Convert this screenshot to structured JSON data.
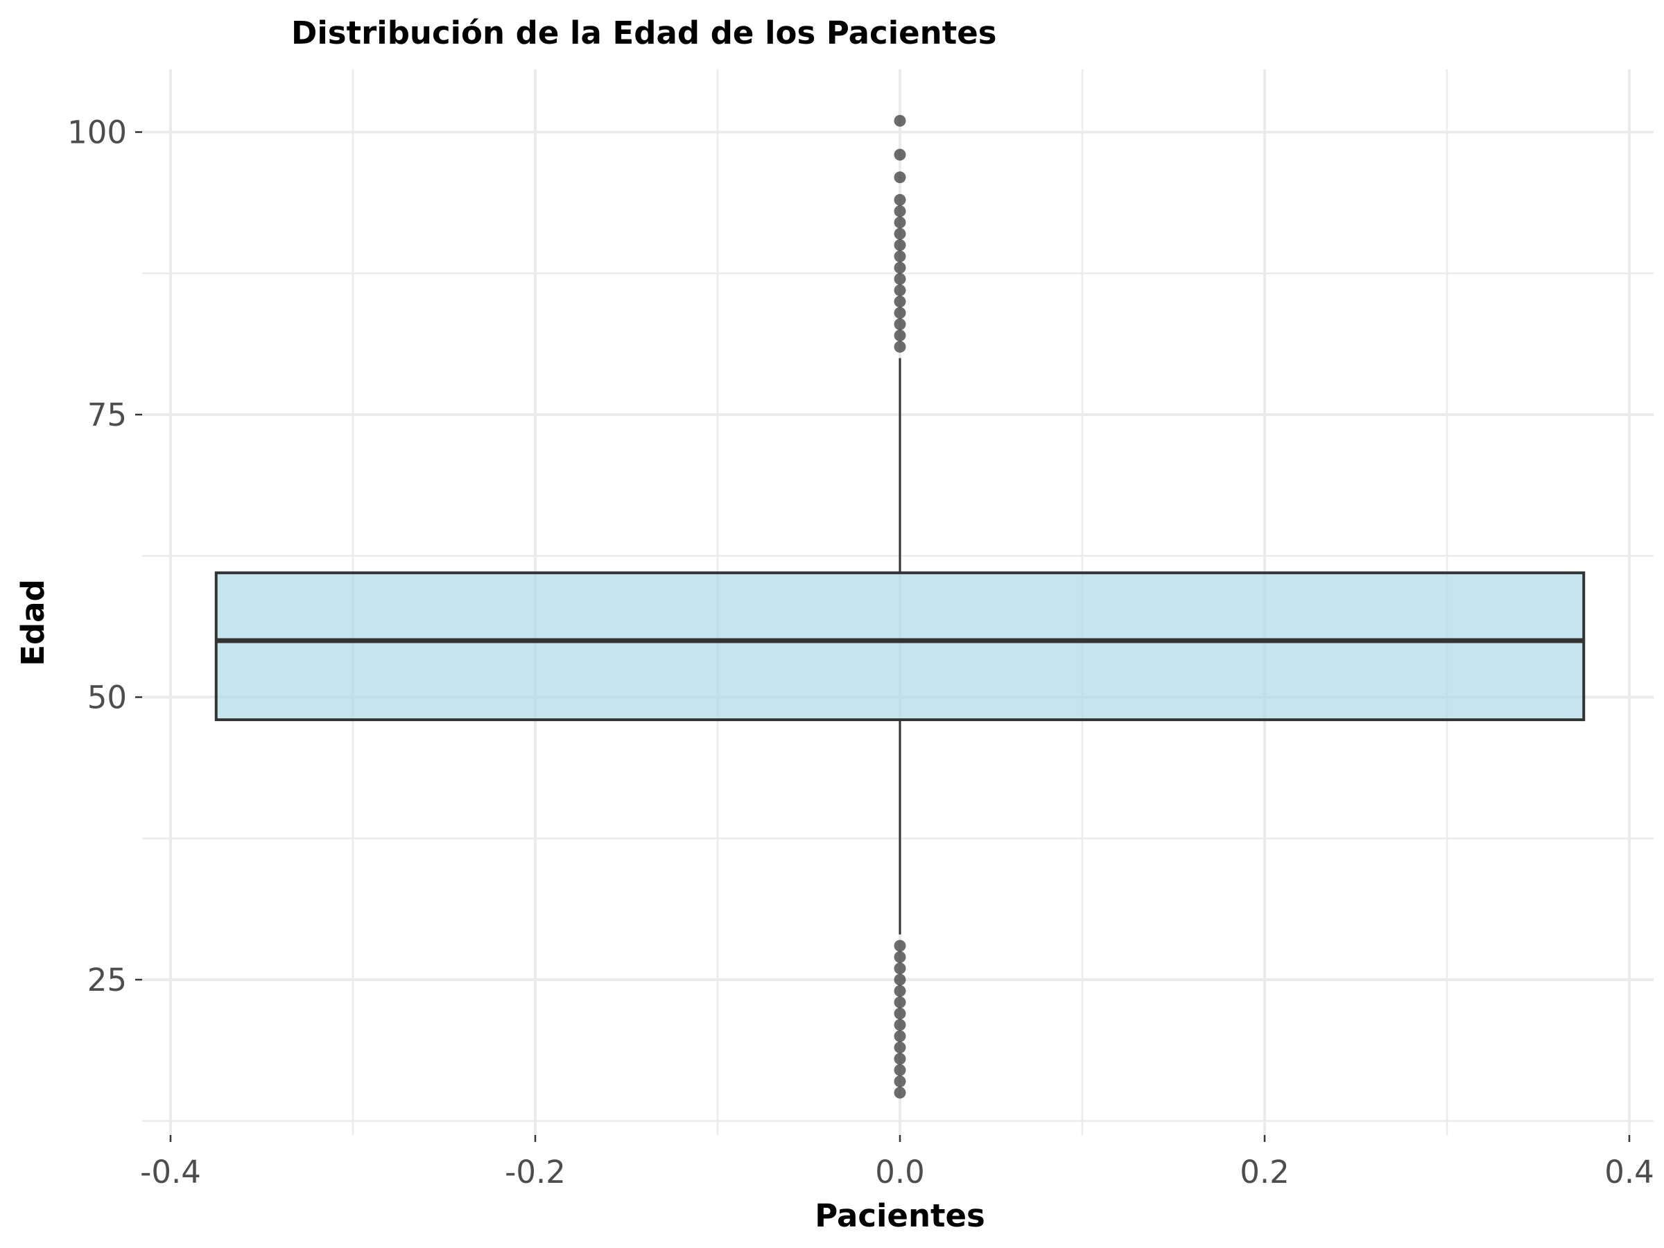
{
  "chart_data": {
    "type": "box",
    "title": "Distribución de la Edad de los Pacientes",
    "xlabel": "Pacientes",
    "ylabel": "Edad",
    "xlim": [
      -0.41,
      0.41
    ],
    "ylim": [
      12,
      106
    ],
    "x_ticks": [
      -0.4,
      -0.2,
      0.0,
      0.2,
      0.4
    ],
    "x_tick_labels": [
      "-0.4",
      "-0.2",
      "0.0",
      "0.2",
      "0.4"
    ],
    "y_ticks": [
      25,
      50,
      75,
      100
    ],
    "y_tick_labels": [
      "25",
      "50",
      "75",
      "100"
    ],
    "grid": true,
    "box": {
      "x": 0.0,
      "x_range": [
        -0.375,
        0.375
      ],
      "q1": 48,
      "median": 55,
      "q3": 61,
      "whisker_low": 29,
      "whisker_high": 80
    },
    "outliers": [
      15,
      16,
      17,
      18,
      19,
      20,
      21,
      22,
      23,
      24,
      25,
      26,
      27,
      28,
      81,
      82,
      83,
      84,
      85,
      86,
      87,
      88,
      89,
      90,
      91,
      92,
      93,
      94,
      96,
      98,
      101
    ],
    "colors": {
      "box_fill": "#add8e6",
      "box_edge": "#333333",
      "outlier": "#333333",
      "grid": "#ebebeb",
      "tick_text": "#4d4d4d"
    }
  }
}
